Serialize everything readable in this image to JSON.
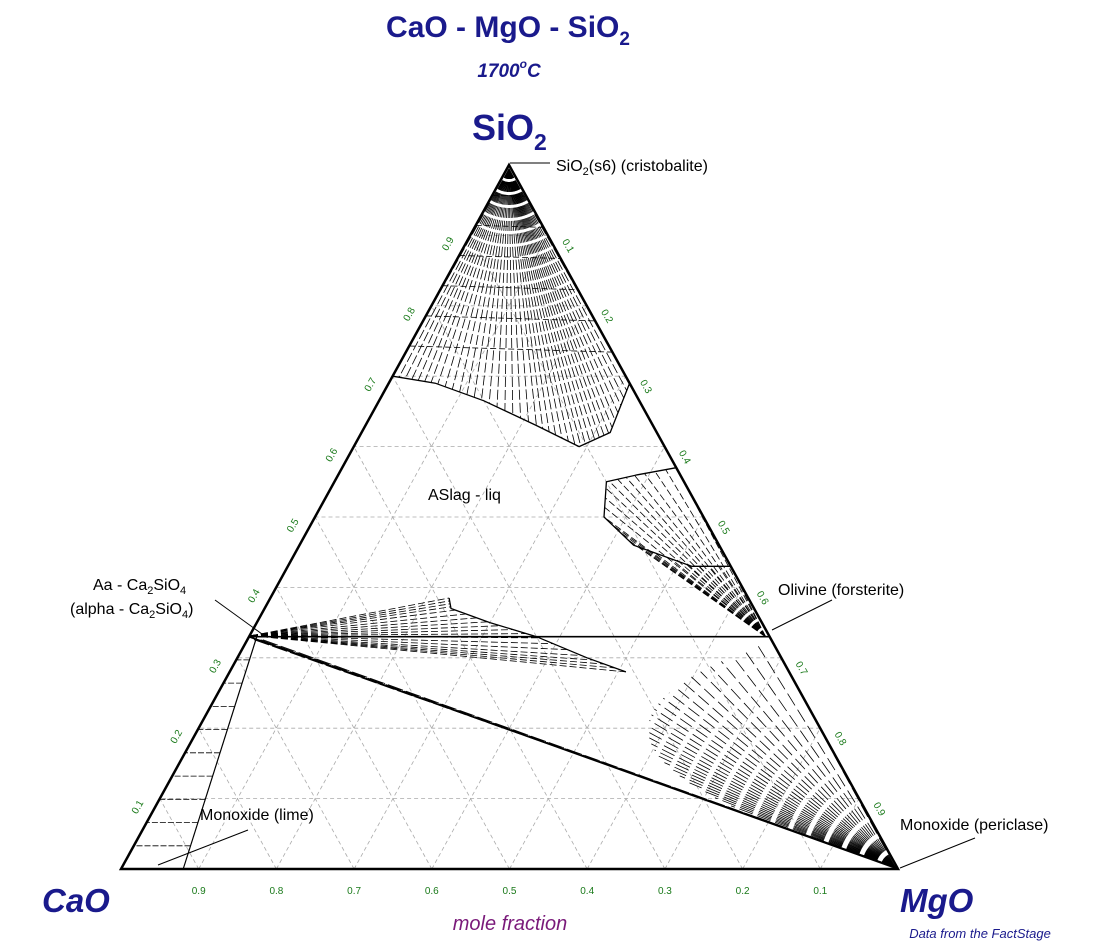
{
  "chart_data": {
    "type": "ternary",
    "title_parts": [
      "CaO - MgO - SiO",
      "2"
    ],
    "subtitle_parts": [
      "1700",
      "o",
      "C"
    ],
    "apex_top_parts": [
      "SiO",
      "2"
    ],
    "corner_left": "CaO",
    "corner_right": "MgO",
    "axis_label": "mole fraction",
    "credit": "Data from the FactStage",
    "ticks_left": [
      "0.1",
      "0.2",
      "0.3",
      "0.4",
      "0.5",
      "0.6",
      "0.7",
      "0.8",
      "0.9"
    ],
    "ticks_right": [
      "0.1",
      "0.2",
      "0.3",
      "0.4",
      "0.5",
      "0.6",
      "0.7",
      "0.8",
      "0.9"
    ],
    "ticks_bottom": [
      "0.9",
      "0.8",
      "0.7",
      "0.6",
      "0.5",
      "0.4",
      "0.3",
      "0.2",
      "0.1"
    ],
    "grid": "dashed, step 0.1",
    "regions": [
      {
        "label": "ASlag - liq"
      },
      {
        "label_parts": [
          "SiO",
          "2",
          "(s6) (cristobalite)"
        ]
      },
      {
        "label_parts": [
          "Aa - Ca",
          "2",
          "SiO",
          "4"
        ]
      },
      {
        "label_parts": [
          "(alpha - Ca",
          "2",
          "SiO",
          "4",
          ")"
        ]
      },
      {
        "label": "Olivine (forsterite)"
      },
      {
        "label": "Monoxide (lime)"
      },
      {
        "label": "Monoxide (periclase)"
      }
    ],
    "boundaries": {
      "silica_liquidus": [
        [
          0.3,
          0.7
        ],
        [
          0.25,
          0.69
        ],
        [
          0.2,
          0.665
        ],
        [
          0.15,
          0.63
        ],
        [
          0.11,
          0.6
        ],
        [
          0.06,
          0.62
        ],
        [
          0.0,
          0.69
        ]
      ],
      "dicalcium_silicate_liquidus": [
        [
          0.385,
          0.385
        ],
        [
          0.39,
          0.37
        ],
        [
          0.35,
          0.35
        ],
        [
          0.3,
          0.33
        ],
        [
          0.25,
          0.3
        ],
        [
          0.21,
          0.28
        ]
      ],
      "olivine_liquidus": [
        [
          0.0,
          0.57
        ],
        [
          0.055,
          0.56
        ],
        [
          0.1,
          0.55
        ],
        [
          0.128,
          0.5
        ],
        [
          0.11,
          0.46
        ],
        [
          0.05,
          0.43
        ],
        [
          0.0,
          0.43
        ]
      ],
      "tie_line_33": [
        [
          0.67,
          0.33
        ],
        [
          0.0,
          0.33
        ]
      ],
      "tie_line_c2s_mgo": [
        [
          0.67,
          0.33
        ],
        [
          0.0,
          0.0
        ]
      ],
      "lime_limit": [
        [
          1.0,
          0.0
        ],
        [
          0.92,
          0.0
        ]
      ]
    }
  }
}
